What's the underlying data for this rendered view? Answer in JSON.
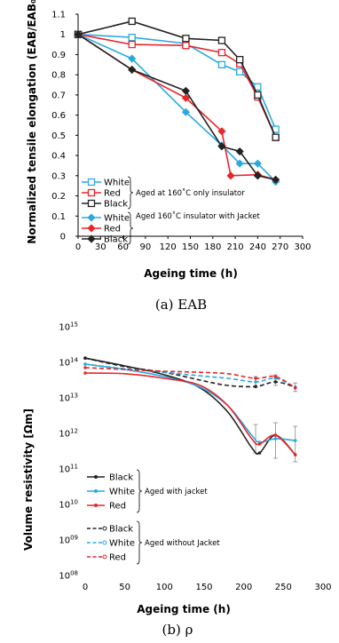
{
  "colors": {
    "white": "#2aa9e0",
    "red": "#e8262b",
    "black": "#222222"
  },
  "chart_data": [
    {
      "type": "line",
      "xlabel": "Ageing time (h)",
      "ylabel": "Normalized tensile elongation (EAB/EAB₀)",
      "caption": "(a) EAB",
      "xlim": [
        0,
        300
      ],
      "ylim": [
        0,
        1.1
      ],
      "xticks": [
        "0",
        "30",
        "60",
        "90",
        "120",
        "150",
        "180",
        "210",
        "240",
        "270",
        "300"
      ],
      "yticks": [
        "0",
        "0.1",
        "0.2",
        "0.3",
        "0.4",
        "0.5",
        "0.6",
        "0.7",
        "0.8",
        "0.9",
        "1",
        "1.1"
      ],
      "groups": [
        {
          "label": "Aged at 160˚C only insulator"
        },
        {
          "label": "Aged 160˚C insulator with Jacket"
        }
      ],
      "series": [
        {
          "name": "White",
          "group": 0,
          "marker": "square",
          "color": "white",
          "x": [
            0,
            72,
            144,
            192,
            216,
            240,
            264
          ],
          "y": [
            1.0,
            0.985,
            0.955,
            0.85,
            0.815,
            0.74,
            0.53
          ]
        },
        {
          "name": "Red",
          "group": 0,
          "marker": "square",
          "color": "red",
          "x": [
            0,
            72,
            144,
            192,
            216,
            240,
            264
          ],
          "y": [
            1.0,
            0.95,
            0.945,
            0.91,
            0.855,
            0.69,
            0.49
          ]
        },
        {
          "name": "Black",
          "group": 0,
          "marker": "square",
          "color": "black",
          "x": [
            0,
            72,
            144,
            192,
            216,
            240,
            264
          ],
          "y": [
            1.0,
            1.065,
            0.98,
            0.97,
            0.875,
            0.7,
            0.49
          ]
        },
        {
          "name": "White",
          "group": 1,
          "marker": "diamond",
          "color": "white",
          "x": [
            0,
            72,
            144,
            192,
            216,
            240,
            264
          ],
          "y": [
            1.0,
            0.88,
            0.615,
            0.45,
            0.36,
            0.36,
            0.27
          ]
        },
        {
          "name": "Red",
          "group": 1,
          "marker": "diamond",
          "color": "red",
          "x": [
            0,
            72,
            144,
            192,
            204,
            240,
            264
          ],
          "y": [
            1.0,
            0.825,
            0.685,
            0.52,
            0.3,
            0.305,
            0.28
          ]
        },
        {
          "name": "Black",
          "group": 1,
          "marker": "diamond",
          "color": "black",
          "x": [
            0,
            72,
            144,
            192,
            216,
            240,
            264
          ],
          "y": [
            1.0,
            0.825,
            0.72,
            0.445,
            0.42,
            0.3,
            0.28
          ]
        }
      ]
    },
    {
      "type": "line",
      "xlabel": "Ageing time (h)",
      "ylabel": "Volume resistivity [Ωm]",
      "caption": "(b) ρ",
      "xlim": [
        0,
        300
      ],
      "ylim_log10": [
        8,
        15
      ],
      "yscale": "log",
      "xticks": [
        "0",
        "50",
        "100",
        "150",
        "200",
        "250",
        "300"
      ],
      "yticks": [
        {
          "base": "10",
          "exp": "08"
        },
        {
          "base": "10",
          "exp": "09"
        },
        {
          "base": "10",
          "exp": "10"
        },
        {
          "base": "10",
          "exp": "11"
        },
        {
          "base": "10",
          "exp": "12"
        },
        {
          "base": "10",
          "exp": "13"
        },
        {
          "base": "10",
          "exp": "14"
        },
        {
          "base": "10",
          "exp": "15"
        }
      ],
      "groups": [
        {
          "label": "Aged with jacket"
        },
        {
          "label": "Aged without Jacket"
        }
      ],
      "series": [
        {
          "name": "Black",
          "group": 0,
          "style": "solid",
          "color": "black",
          "x": [
            0,
            50,
            100,
            145,
            180,
            210,
            220,
            240,
            265
          ],
          "log10_y": [
            14.12,
            13.9,
            13.65,
            13.28,
            12.6,
            11.6,
            11.45,
            11.95,
            11.4
          ]
        },
        {
          "name": "White",
          "group": 0,
          "style": "solid",
          "color": "white",
          "x": [
            0,
            50,
            100,
            145,
            180,
            210,
            220,
            240,
            265
          ],
          "log10_y": [
            13.95,
            13.8,
            13.6,
            13.3,
            12.78,
            11.95,
            11.75,
            11.85,
            11.8
          ]
        },
        {
          "name": "Red",
          "group": 0,
          "style": "solid",
          "color": "red",
          "x": [
            0,
            50,
            100,
            145,
            180,
            210,
            220,
            240,
            265
          ],
          "log10_y": [
            13.7,
            13.68,
            13.55,
            13.35,
            12.78,
            11.85,
            11.7,
            11.95,
            11.4
          ]
        },
        {
          "name": "Black",
          "group": 1,
          "style": "dashed",
          "color": "black",
          "x": [
            0,
            50,
            100,
            145,
            180,
            215,
            240,
            265
          ],
          "log10_y": [
            14.12,
            13.88,
            13.72,
            13.5,
            13.35,
            13.32,
            13.45,
            13.3
          ]
        },
        {
          "name": "White",
          "group": 1,
          "style": "dashed",
          "color": "white",
          "x": [
            0,
            50,
            100,
            145,
            180,
            215,
            240,
            265
          ],
          "log10_y": [
            13.95,
            13.82,
            13.72,
            13.62,
            13.55,
            13.45,
            13.55,
            13.3
          ]
        },
        {
          "name": "Red",
          "group": 1,
          "style": "dashed",
          "color": "red",
          "x": [
            0,
            50,
            100,
            145,
            180,
            215,
            240,
            265
          ],
          "log10_y": [
            13.85,
            13.8,
            13.75,
            13.72,
            13.68,
            13.55,
            13.6,
            13.28
          ]
        }
      ]
    }
  ]
}
